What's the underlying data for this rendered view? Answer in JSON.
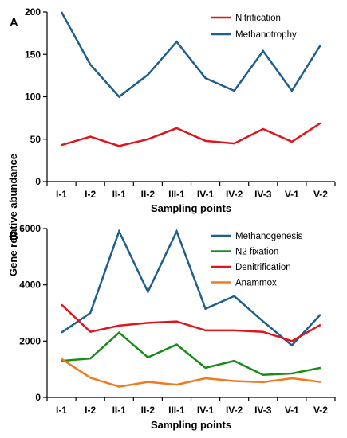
{
  "y_axis_label": "Gene relative abundance",
  "chart_data": [
    {
      "type": "line",
      "panel_label": "A",
      "categories": [
        "I-1",
        "I-2",
        "II-1",
        "II-2",
        "III-1",
        "IV-1",
        "IV-2",
        "IV-3",
        "V-1",
        "V-2"
      ],
      "series": [
        {
          "name": "Nitrification",
          "color": "#e0141c",
          "values": [
            43,
            53,
            42,
            50,
            63,
            48,
            45,
            62,
            47,
            69
          ]
        },
        {
          "name": "Methanotrophy",
          "color": "#1f5f8e",
          "values": [
            200,
            138,
            100,
            126,
            165,
            122,
            107,
            154,
            107,
            161
          ]
        }
      ],
      "xlabel": "Sampling points",
      "ylabel": "Gene relative abundance",
      "ylim": [
        0,
        200
      ],
      "yticks": [
        0,
        50,
        100,
        150,
        200
      ],
      "grid": false,
      "legend": "top-right"
    },
    {
      "type": "line",
      "panel_label": "B",
      "categories": [
        "I-1",
        "I-2",
        "II-1",
        "II-2",
        "III-1",
        "IV-1",
        "IV-2",
        "IV-3",
        "V-1",
        "V-2"
      ],
      "series": [
        {
          "name": "Methanogenesis",
          "color": "#1f5f8e",
          "values": [
            2300,
            3000,
            5900,
            3750,
            5900,
            3150,
            3600,
            2700,
            1850,
            2950
          ]
        },
        {
          "name": "N2 fixation",
          "color": "#1a8c1a",
          "values": [
            1300,
            1380,
            2300,
            1420,
            1880,
            1050,
            1300,
            800,
            850,
            1050
          ]
        },
        {
          "name": "Denitrification",
          "color": "#e0141c",
          "values": [
            3300,
            2330,
            2550,
            2650,
            2700,
            2380,
            2380,
            2330,
            2000,
            2580
          ]
        },
        {
          "name": "Anammox",
          "color": "#f07a1e",
          "values": [
            1370,
            700,
            380,
            550,
            450,
            680,
            580,
            540,
            680,
            550
          ]
        }
      ],
      "xlabel": "Sampling points",
      "ylabel": "Gene relative abundance",
      "ylim": [
        0,
        6000
      ],
      "yticks": [
        0,
        2000,
        4000,
        6000
      ],
      "grid": false,
      "legend": "top-right"
    }
  ]
}
